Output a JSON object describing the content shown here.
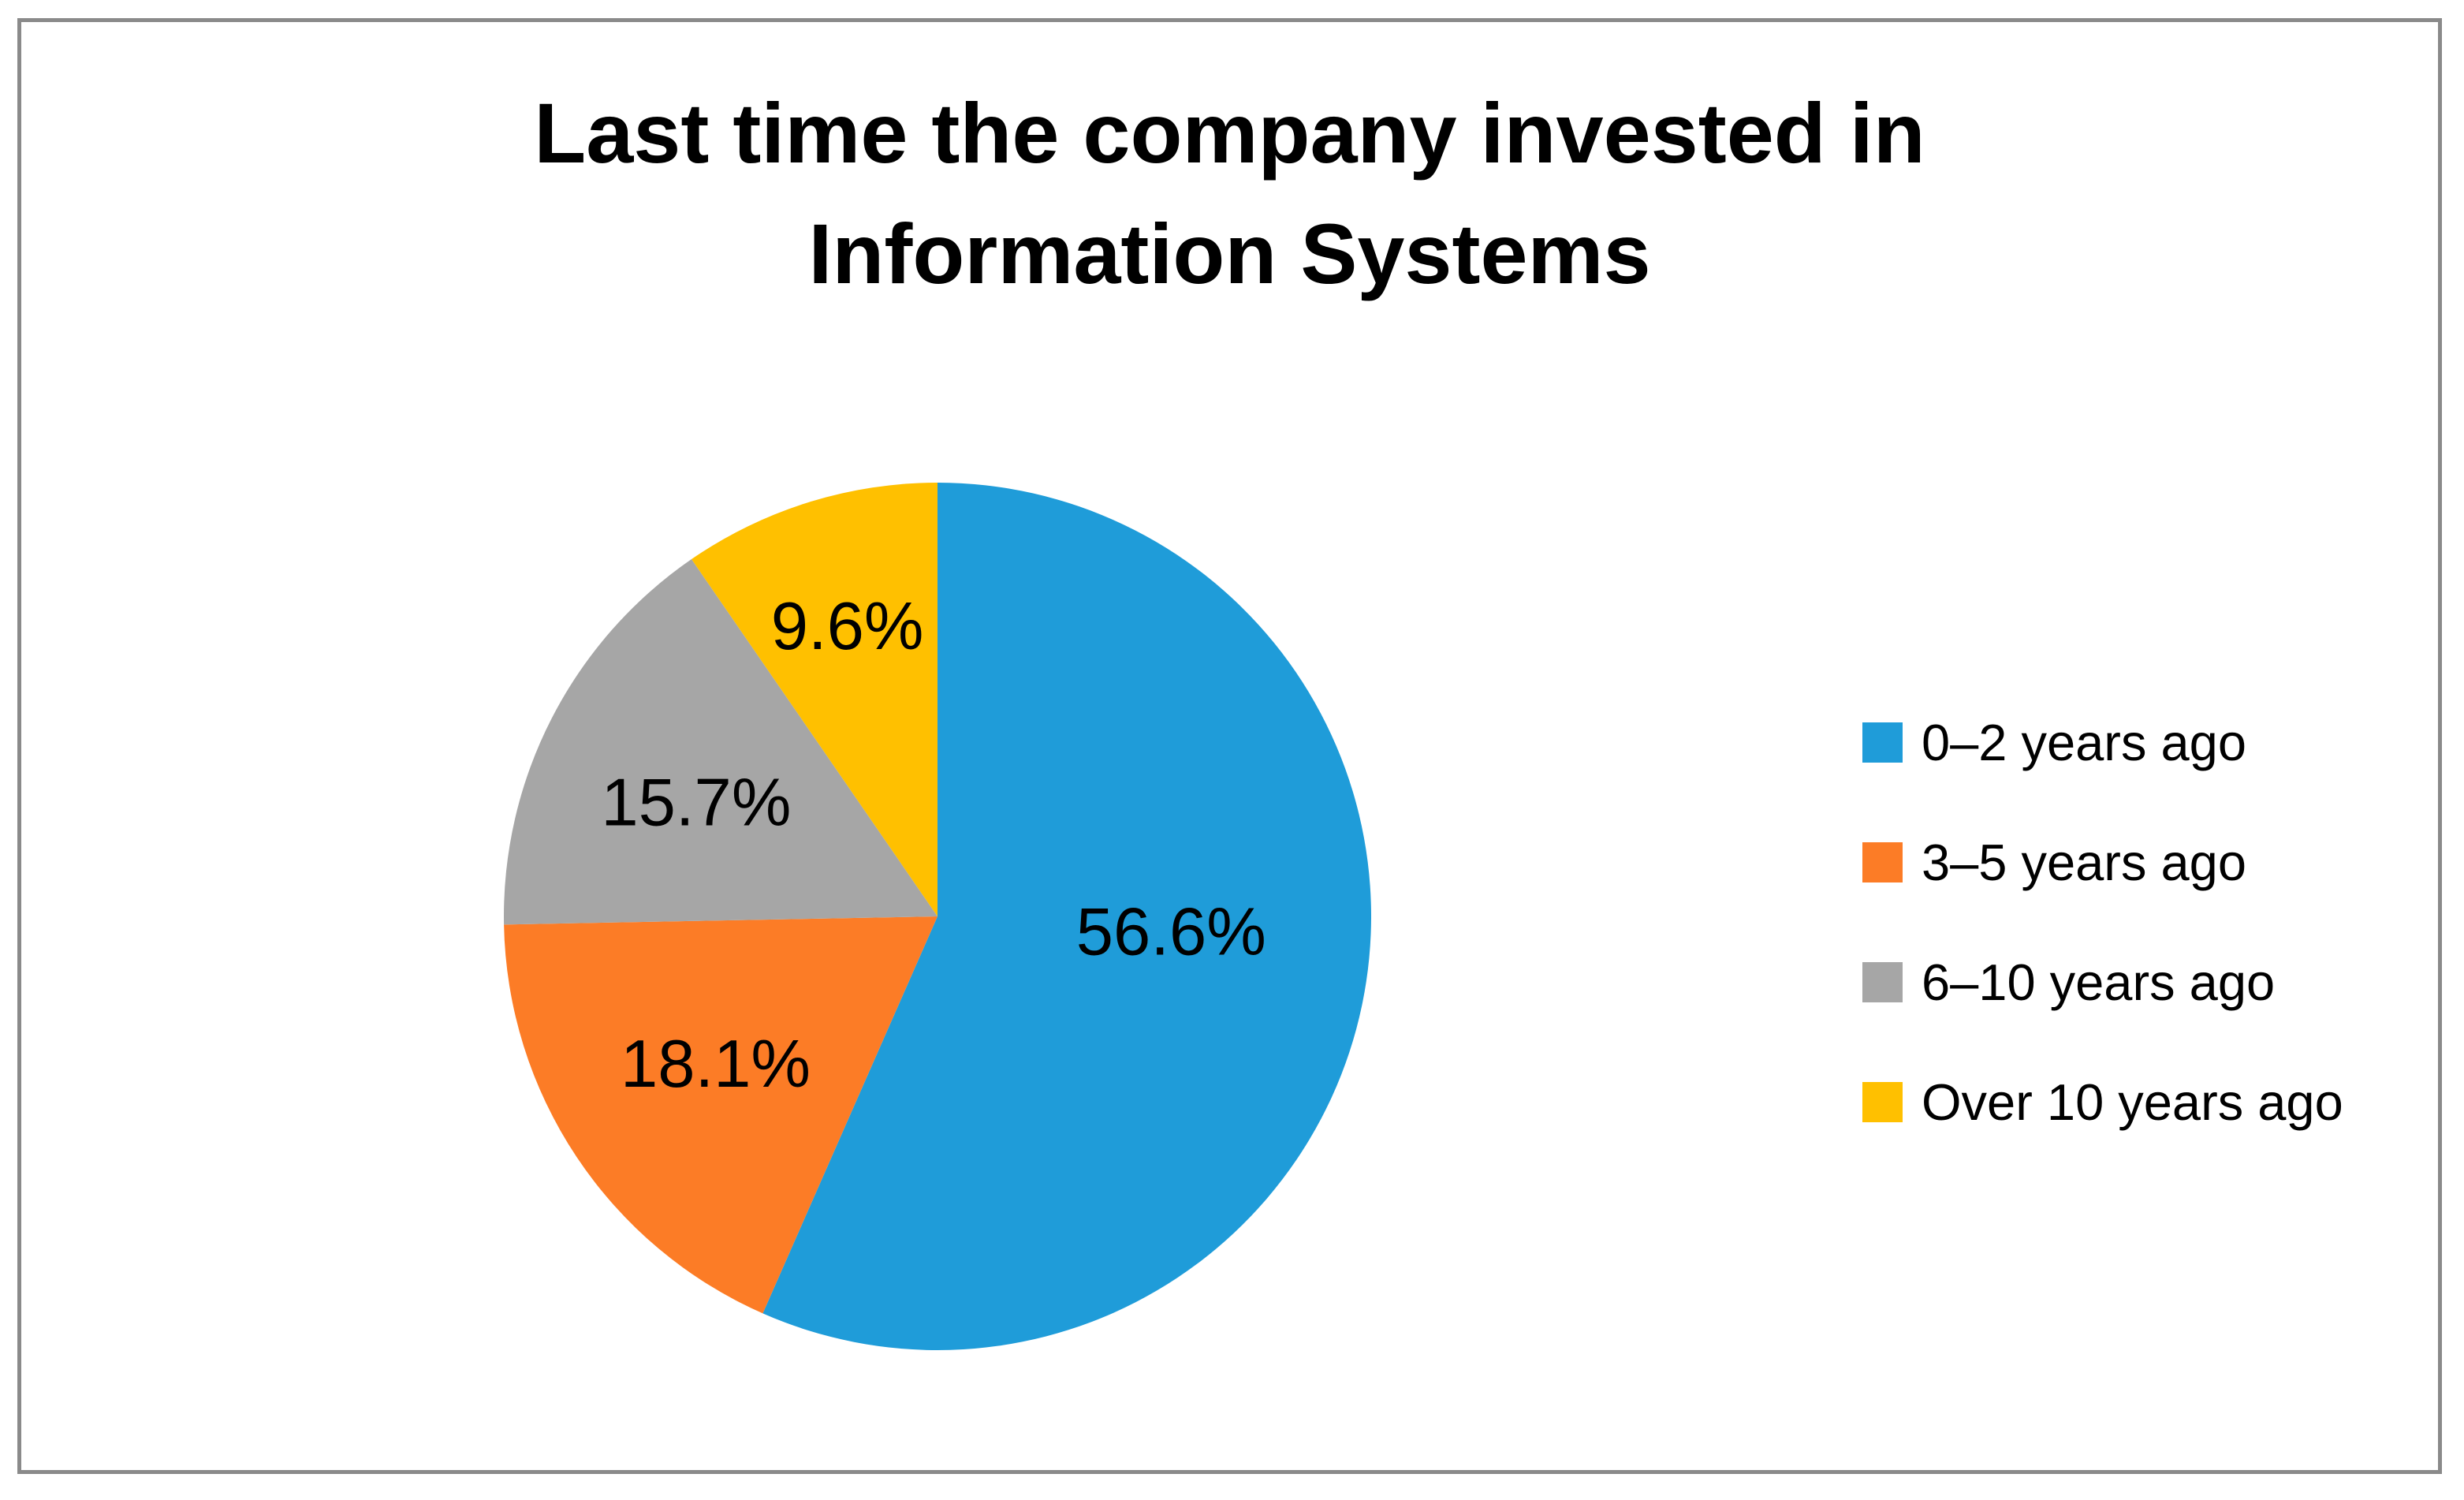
{
  "title": "Last time the company invested in\nInformation Systems",
  "chart_data": {
    "type": "pie",
    "title": "Last time the company invested in Information Systems",
    "categories": [
      "0–2 years ago",
      "3–5 years ago",
      "6–10 years ago",
      "Over 10 years ago"
    ],
    "values": [
      56.6,
      18.1,
      15.7,
      9.6
    ],
    "labels": [
      "56.6%",
      "18.1%",
      "15.7%",
      "9.6%"
    ],
    "colors": [
      "#1F9CD9",
      "#FC7C26",
      "#A6A6A6",
      "#FFC000"
    ],
    "start_angle_deg": 0,
    "direction": "clockwise",
    "legend_position": "right",
    "slice_label_color": "#000000",
    "frame_border_color": "#8A8A8A",
    "background_color": "#FFFFFF"
  }
}
